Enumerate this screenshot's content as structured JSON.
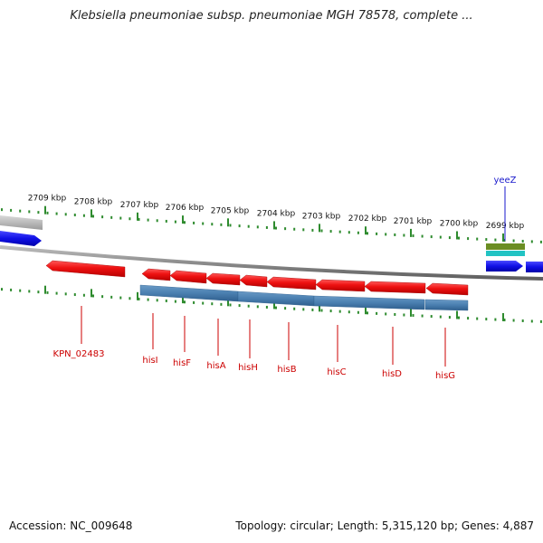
{
  "title": "Klebsiella pneumoniae subsp. pneumoniae MGH 78578, complete ...",
  "colors": {
    "tick": "#2e8b2e",
    "genome_line": "#8c8c8c",
    "gene_red": "#ee1111",
    "gene_red_label": "#cc0000",
    "gene_blue": "#1010e6",
    "gene_grey": "#b8b8b8",
    "protein_steelblue": "#4a7fb0",
    "label_blue": "#1a1acc",
    "feat_olive": "#6b8e23",
    "feat_cyan": "#22c3c3"
  },
  "axis_ticks": [
    {
      "label": "2709 kbp"
    },
    {
      "label": "2708 kbp"
    },
    {
      "label": "2707 kbp"
    },
    {
      "label": "2706 kbp"
    },
    {
      "label": "2705 kbp"
    },
    {
      "label": "2704 kbp"
    },
    {
      "label": "2703 kbp"
    },
    {
      "label": "2702 kbp"
    },
    {
      "label": "2701 kbp"
    },
    {
      "label": "2700 kbp"
    },
    {
      "label": "2699 kbp"
    }
  ],
  "genes_red": [
    {
      "label": "KPN_02483"
    },
    {
      "label": "hisI"
    },
    {
      "label": "hisF"
    },
    {
      "label": "hisA"
    },
    {
      "label": "hisH"
    },
    {
      "label": "hisB"
    },
    {
      "label": "hisC"
    },
    {
      "label": "hisD"
    },
    {
      "label": "hisG"
    }
  ],
  "gene_blue_label": "yeeZ",
  "footer": {
    "accession": "Accession: NC_009648",
    "topology": "Topology: circular; Length: 5,315,120 bp; Genes: 4,887"
  }
}
